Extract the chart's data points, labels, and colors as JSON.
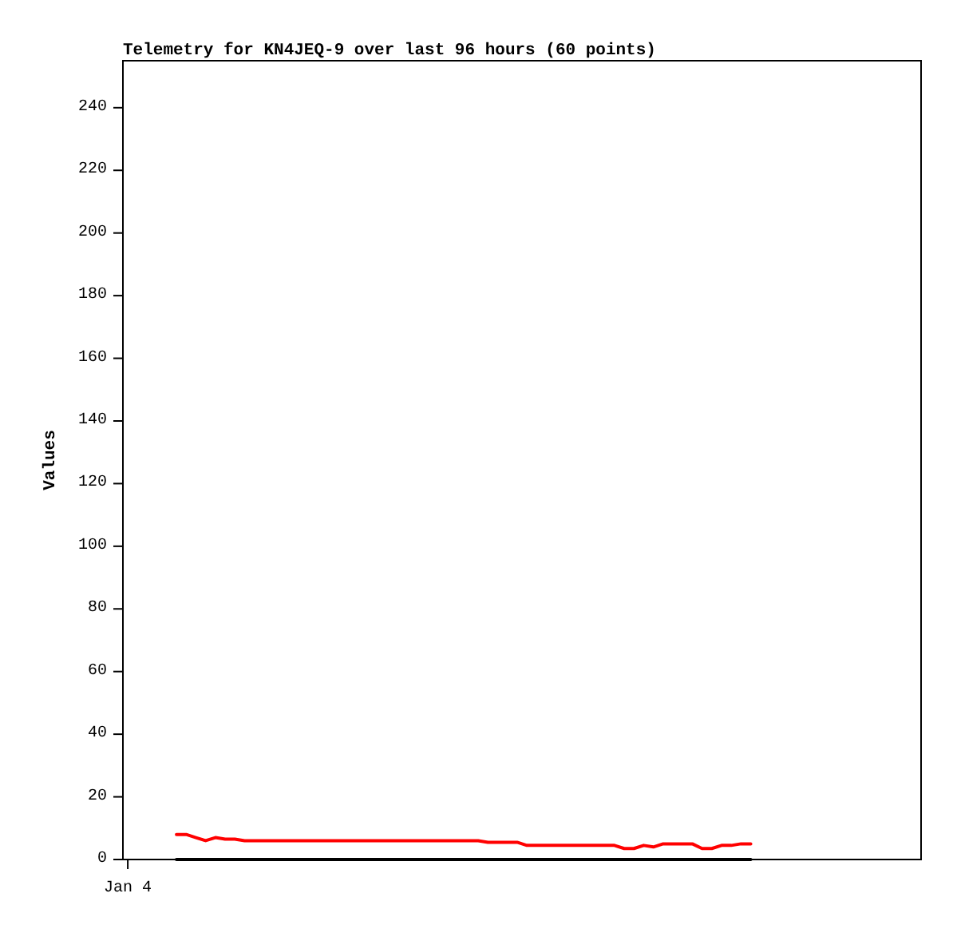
{
  "chart_data": {
    "type": "line",
    "title": "Telemetry for KN4JEQ-9 over last 96 hours (60 points)",
    "ylabel": "Values",
    "categories": [
      "Jan 4",
      null,
      null,
      null,
      null,
      null,
      null,
      null,
      null,
      null,
      null,
      null,
      null,
      null,
      null,
      null,
      null,
      null,
      null,
      null,
      null,
      null,
      null,
      null,
      null,
      null,
      null,
      null,
      null,
      null,
      null,
      null,
      null,
      null,
      null,
      null,
      null,
      null,
      null,
      null,
      null,
      null,
      null,
      null,
      null,
      null,
      null,
      null,
      null,
      null,
      null,
      null,
      null,
      null,
      null,
      null,
      null,
      null,
      null,
      null,
      null,
      null,
      null,
      null,
      null,
      null,
      null,
      null,
      null,
      null,
      null,
      null,
      null,
      null,
      null,
      null,
      null,
      null,
      null,
      null,
      null,
      null
    ],
    "series": [
      {
        "color": "#000000",
        "values": [
          null,
          null,
          null,
          null,
          null,
          0,
          0,
          0,
          0,
          0,
          0,
          0,
          0,
          0,
          0,
          0,
          0,
          0,
          0,
          0,
          0,
          0,
          0,
          0,
          0,
          0,
          0,
          0,
          0,
          0,
          0,
          0,
          0,
          0,
          0,
          0,
          0,
          0,
          0,
          0,
          0,
          0,
          0,
          0,
          0,
          0,
          0,
          0,
          0,
          0,
          0,
          0,
          0,
          0,
          0,
          0,
          0,
          0,
          0,
          0,
          0,
          0,
          0,
          0,
          0,
          null,
          null,
          null,
          null,
          null,
          null,
          null,
          null,
          null,
          null,
          null,
          null,
          null,
          null,
          null,
          null,
          null
        ]
      },
      {
        "color": "#ff0000",
        "values": [
          null,
          null,
          null,
          null,
          null,
          8,
          8,
          7,
          6,
          7,
          6.5,
          6.5,
          6,
          6,
          6,
          6,
          6,
          6,
          6,
          6,
          6,
          6,
          6,
          6,
          6,
          6,
          6,
          6,
          6,
          6,
          6,
          6,
          6,
          6,
          6,
          6,
          6,
          5.5,
          5.5,
          5.5,
          5.5,
          4.5,
          4.5,
          4.5,
          4.5,
          4.5,
          4.5,
          4.5,
          4.5,
          4.5,
          4.5,
          3.5,
          3.5,
          4.5,
          4,
          5,
          5,
          5,
          5,
          3.5,
          3.5,
          4.5,
          4.5,
          5,
          5,
          null,
          null,
          null,
          null,
          null,
          null,
          null,
          null,
          null,
          null,
          null,
          null,
          null,
          null,
          null,
          null,
          null
        ]
      }
    ],
    "ylim": [
      0,
      255
    ],
    "yticks": [
      0,
      20,
      40,
      60,
      80,
      100,
      120,
      140,
      160,
      180,
      200,
      220,
      240
    ]
  }
}
